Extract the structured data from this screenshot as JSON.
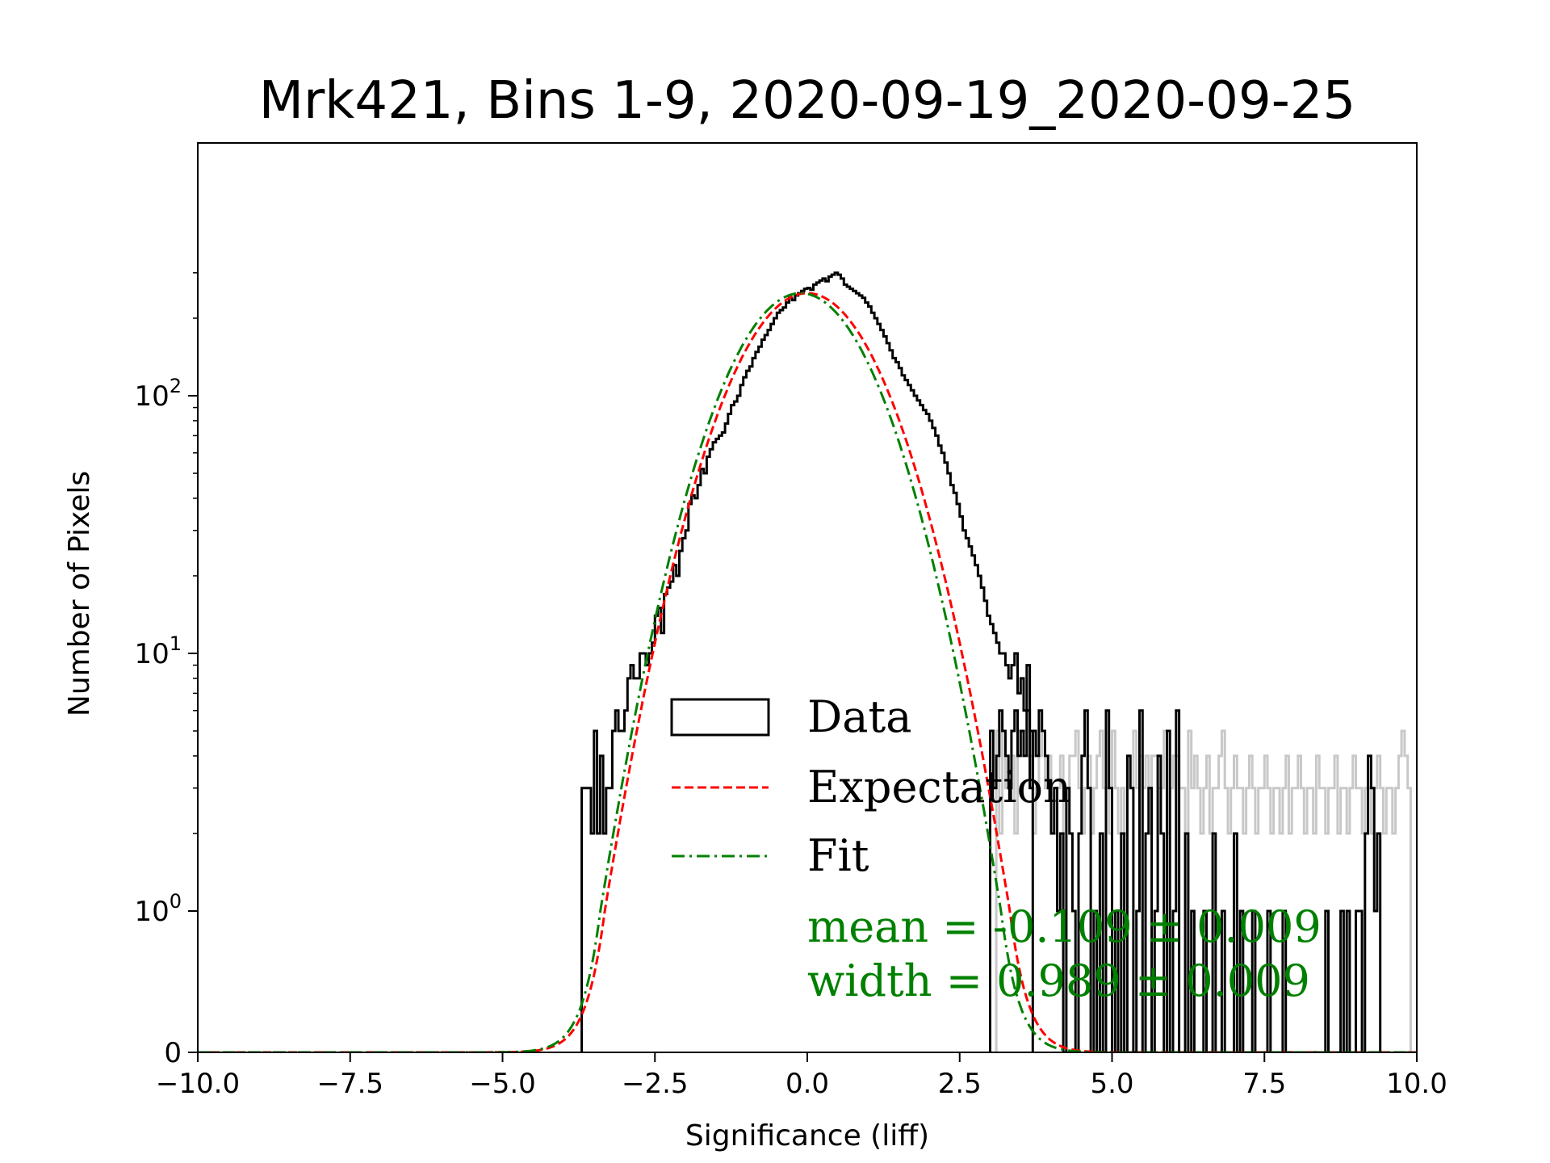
{
  "chart_data": {
    "type": "histogram",
    "title": "Mrk421, Bins 1-9, 2020-09-19_2020-09-25",
    "xlabel": "Significance (liff)",
    "ylabel": "Number of Pixels",
    "xlim": [
      -10.0,
      10.0
    ],
    "yscale": "symlog",
    "x_ticks": [
      -10.0,
      -7.5,
      -5.0,
      -2.5,
      0.0,
      2.5,
      5.0,
      7.5,
      10.0
    ],
    "x_tick_labels": [
      "−10.0",
      "−7.5",
      "−5.0",
      "−2.5",
      "0.0",
      "2.5",
      "5.0",
      "7.5",
      "10.0"
    ],
    "y_tick_labels": [
      {
        "value": 0,
        "base": "0",
        "exp": ""
      },
      {
        "value": 1,
        "base": "10",
        "exp": "0"
      },
      {
        "value": 10,
        "base": "10",
        "exp": "1"
      },
      {
        "value": 100,
        "base": "10",
        "exp": "2"
      }
    ],
    "legend": {
      "placement": "lower-center",
      "items": [
        {
          "label": "Data",
          "style": "box"
        },
        {
          "label": "Expectation",
          "style": "dashed"
        },
        {
          "label": "Fit",
          "style": "dashdot"
        }
      ]
    },
    "annotations": [
      "mean = -0.109 ± 0.009",
      "width = 0.989 ± 0.009"
    ],
    "expectation": {
      "mean": 0.0,
      "sigma": 1.0,
      "amplitude": 250
    },
    "fit": {
      "mean": -0.109,
      "sigma": 0.989,
      "amplitude": 250
    },
    "colors": {
      "data": "#000000",
      "expectation": "#ff0000",
      "fit": "#008000",
      "excluded": "#c8c8c8",
      "annotation": "#008000"
    },
    "data_left": {
      "bin_width": 0.05,
      "x_start": -3.7,
      "counts": [
        3,
        3,
        3,
        2,
        5,
        2,
        4,
        2,
        3,
        3,
        5,
        6,
        5,
        5,
        6,
        8,
        9,
        8,
        8,
        10,
        10,
        9,
        10,
        11,
        14,
        15,
        12,
        17,
        18,
        19,
        22,
        20,
        25,
        28,
        30,
        38,
        41,
        40,
        45,
        52,
        50,
        58,
        62,
        66,
        68,
        70,
        72,
        78,
        85,
        92,
        95,
        100,
        110,
        118,
        125,
        130,
        140,
        148,
        155,
        165,
        172,
        180,
        190,
        200,
        210,
        215,
        220,
        230,
        240,
        235,
        245,
        250,
        255,
        260,
        262,
        258,
        270,
        275,
        280,
        285,
        278,
        290,
        295,
        300,
        295,
        285,
        270,
        265,
        260,
        255,
        250,
        245,
        240,
        230,
        222,
        210,
        200,
        190,
        180,
        170,
        160,
        150,
        140,
        135,
        128,
        120,
        115,
        110,
        105,
        100,
        96,
        92,
        88,
        85,
        80,
        75,
        70,
        64,
        60,
        55,
        50,
        45,
        42,
        38,
        34,
        30,
        28,
        26,
        24,
        22,
        20,
        18,
        16,
        14,
        13,
        12,
        11,
        10,
        10,
        9,
        8,
        9,
        10,
        7,
        8,
        6,
        9,
        5
      ]
    },
    "data_right": {
      "bin_width": 0.05,
      "x_start": 3.1,
      "counts": [
        5,
        2,
        5,
        3,
        3,
        4,
        2,
        5,
        4,
        5,
        4,
        4,
        2,
        3,
        4,
        5,
        3,
        4,
        2,
        2,
        3,
        4,
        2,
        3,
        4,
        4,
        5,
        3,
        2,
        3,
        4,
        2,
        3,
        4,
        5,
        3,
        3,
        2,
        5,
        3,
        2,
        3,
        2,
        4,
        3,
        5,
        3,
        4,
        3,
        4,
        2,
        4,
        4,
        3,
        3,
        5,
        2,
        3,
        4,
        4,
        3,
        3,
        2,
        5,
        3,
        4,
        3,
        2,
        3,
        4,
        2,
        3,
        3,
        4,
        5,
        3,
        2,
        3,
        4,
        3,
        3,
        2,
        3,
        4,
        3,
        2,
        3,
        3,
        4,
        3,
        2,
        3,
        3,
        2,
        3,
        4,
        2,
        3,
        3,
        4,
        3,
        2,
        3,
        3,
        2,
        4,
        3,
        3,
        2,
        3,
        3,
        4,
        2,
        3,
        3,
        2,
        3,
        4,
        3,
        3,
        2,
        3,
        3,
        2,
        3,
        4,
        3,
        2,
        3,
        3,
        2,
        3,
        4,
        5,
        4,
        3
      ]
    },
    "data_right_counted": {
      "bin_width": 0.05,
      "x_start": 3.0,
      "counts": [
        5,
        3,
        4,
        6,
        5,
        4,
        3,
        5,
        6,
        4,
        5,
        4,
        6,
        3,
        5,
        4,
        6,
        5,
        4,
        3,
        2,
        3,
        1,
        2,
        0,
        3,
        2,
        1,
        0,
        2,
        4,
        6,
        3,
        0,
        1,
        0,
        2,
        0,
        6,
        3,
        0,
        1,
        0,
        2,
        0,
        4,
        3,
        0,
        1,
        6,
        0,
        2,
        3,
        0,
        1,
        4,
        2,
        0,
        5,
        0,
        1,
        6,
        0,
        0,
        2,
        0,
        1,
        0,
        0,
        0,
        1,
        0,
        0,
        2,
        0,
        0,
        1,
        0,
        0,
        0,
        2,
        0,
        1,
        0,
        0,
        0,
        1,
        0,
        0,
        0,
        0,
        1,
        0,
        0,
        0,
        0,
        1,
        0,
        0,
        0,
        0,
        0,
        0,
        0,
        0,
        0,
        0,
        0,
        0,
        0,
        1,
        0,
        0,
        0,
        0,
        1,
        0,
        1,
        0,
        0,
        1,
        1,
        0,
        2,
        4,
        3,
        1,
        2
      ]
    }
  }
}
